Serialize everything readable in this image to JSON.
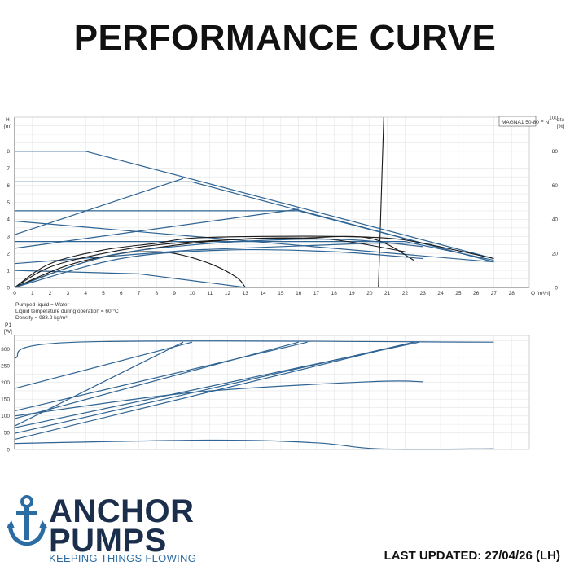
{
  "title": "PERFORMANCE CURVE",
  "brand": {
    "line1": "ANCHOR",
    "line2": "PUMPS",
    "tagline": "KEEPING THINGS FLOWING",
    "primary_color": "#1b2f4d",
    "accent_color": "#2b6ca3",
    "icon": "anchor-icon"
  },
  "last_updated": "LAST UPDATED: 27/04/26 (LH)",
  "colors": {
    "curve_blue": "#2f6493",
    "curve_black": "#1a1a1a",
    "grid": "#e4e4e4"
  },
  "chart_data": [
    {
      "type": "line",
      "title": "",
      "legend_label": "MAGNA1 50-80 F N",
      "ylabel": "H",
      "yunit": "[m]",
      "xlabel": "Q [m³/h]",
      "y2label": "eta",
      "y2unit": "[%]",
      "xlim": [
        0,
        29
      ],
      "ylim": [
        0,
        10
      ],
      "y2lim": [
        0,
        100
      ],
      "xticks": [
        "0",
        "1",
        "2",
        "3",
        "4",
        "5",
        "6",
        "7",
        "8",
        "9",
        "10",
        "11",
        "12",
        "13",
        "14",
        "15",
        "16",
        "17",
        "18",
        "19",
        "20",
        "21",
        "22",
        "23",
        "24",
        "25",
        "26",
        "27",
        "28"
      ],
      "yticks": [
        "0",
        "1",
        "2",
        "3",
        "4",
        "5",
        "6",
        "7",
        "8"
      ],
      "y2ticks": [
        "0",
        "20",
        "40",
        "60",
        "80",
        "100"
      ],
      "grid": true,
      "vertical_line_x": [
        20.5,
        20.8
      ],
      "notes": [
        "Pumped liquid = Water",
        "Liquid temperature during operation = 60 °C",
        "Density = 983.2 kg/m³"
      ],
      "series": [
        {
          "axis": "H",
          "color": "blue",
          "points": [
            [
              0,
              8
            ],
            [
              4,
              8
            ],
            [
              27,
              1.7
            ]
          ]
        },
        {
          "axis": "H",
          "color": "blue",
          "points": [
            [
              0,
              6.2
            ],
            [
              10,
              6.2
            ],
            [
              27,
              1.5
            ]
          ]
        },
        {
          "axis": "H",
          "color": "blue",
          "points": [
            [
              0,
              4.5
            ],
            [
              16,
              4.5
            ],
            [
              27,
              1.5
            ]
          ]
        },
        {
          "axis": "H",
          "color": "blue",
          "points": [
            [
              0,
              3.9
            ],
            [
              27,
              1.5
            ]
          ]
        },
        {
          "axis": "H",
          "color": "blue",
          "points": [
            [
              0,
              2.7
            ],
            [
              22,
              2.7
            ],
            [
              27,
              1.6
            ]
          ]
        },
        {
          "axis": "H",
          "color": "blue",
          "points": [
            [
              0,
              1.0
            ],
            [
              7,
              0.8
            ],
            [
              13,
              0
            ]
          ]
        },
        {
          "axis": "H",
          "color": "blue",
          "points": [
            [
              0,
              3.1
            ],
            [
              9.5,
              6.4
            ]
          ]
        },
        {
          "axis": "H",
          "color": "blue",
          "points": [
            [
              0,
              2.3
            ],
            [
              16,
              4.6
            ]
          ]
        },
        {
          "axis": "H",
          "color": "blue",
          "points": [
            [
              0,
              1.4
            ],
            [
              10,
              2.2
            ],
            [
              20,
              2.6
            ],
            [
              24,
              2.6
            ]
          ]
        },
        {
          "axis": "eta",
          "color": "black",
          "points": [
            [
              0,
              0
            ],
            [
              2,
              14
            ],
            [
              5,
              22
            ],
            [
              8,
              26
            ],
            [
              10,
              29
            ],
            [
              14,
              30
            ],
            [
              18,
              30
            ],
            [
              21,
              29
            ],
            [
              23,
              26
            ],
            [
              27,
              17
            ]
          ]
        },
        {
          "axis": "eta",
          "color": "black",
          "points": [
            [
              0,
              0
            ],
            [
              2,
              12
            ],
            [
              5,
              20
            ],
            [
              8,
              25
            ],
            [
              12,
              28
            ],
            [
              16,
              29
            ],
            [
              20,
              29
            ],
            [
              22.5,
              16
            ]
          ]
        },
        {
          "axis": "eta",
          "color": "black",
          "points": [
            [
              0,
              0
            ],
            [
              3,
              13
            ],
            [
              6,
              20
            ],
            [
              10,
              26
            ],
            [
              14,
              29
            ],
            [
              18,
              28
            ],
            [
              22,
              21
            ]
          ]
        },
        {
          "axis": "eta",
          "color": "black",
          "points": [
            [
              0,
              0
            ],
            [
              2,
              8
            ],
            [
              4,
              15
            ],
            [
              6,
              20
            ],
            [
              7.5,
              21
            ],
            [
              9,
              20
            ],
            [
              11,
              14
            ],
            [
              12.5,
              6
            ],
            [
              13,
              0
            ]
          ]
        },
        {
          "axis": "eta",
          "color": "blue",
          "points": [
            [
              0,
              0
            ],
            [
              5,
              18
            ],
            [
              10,
              25
            ],
            [
              15,
              28
            ],
            [
              19,
              28
            ],
            [
              23,
              24
            ]
          ]
        },
        {
          "axis": "eta",
          "color": "blue",
          "points": [
            [
              0,
              0
            ],
            [
              6,
              17
            ],
            [
              12,
              22
            ],
            [
              18,
              21
            ],
            [
              23,
              17
            ]
          ]
        }
      ]
    },
    {
      "type": "line",
      "title": "",
      "ylabel": "P1",
      "yunit": "[W]",
      "xlim": [
        0,
        29
      ],
      "ylim": [
        0,
        340
      ],
      "yticks": [
        "0",
        "50",
        "100",
        "150",
        "200",
        "250",
        "300"
      ],
      "grid": true,
      "series": [
        {
          "color": "blue",
          "points": [
            [
              0,
              272
            ],
            [
              3.5,
              320
            ],
            [
              27,
              320
            ]
          ]
        },
        {
          "color": "blue",
          "points": [
            [
              0,
              182
            ],
            [
              10,
              320
            ]
          ]
        },
        {
          "color": "blue",
          "points": [
            [
              0,
              70
            ],
            [
              9.5,
              320
            ]
          ]
        },
        {
          "color": "blue",
          "points": [
            [
              0,
              115
            ],
            [
              16.5,
              320
            ]
          ]
        },
        {
          "color": "blue",
          "points": [
            [
              0,
              92
            ],
            [
              16,
              320
            ]
          ]
        },
        {
          "color": "blue",
          "points": [
            [
              0,
              65
            ],
            [
              22.8,
              320
            ]
          ]
        },
        {
          "color": "blue",
          "points": [
            [
              0,
              48
            ],
            [
              22.5,
              320
            ]
          ]
        },
        {
          "color": "blue",
          "points": [
            [
              0,
              30
            ],
            [
              22.5,
              320
            ]
          ]
        },
        {
          "color": "blue",
          "points": [
            [
              0,
              18
            ],
            [
              11,
              28
            ],
            [
              17,
              20
            ],
            [
              20.5,
              2
            ],
            [
              27,
              2
            ]
          ]
        },
        {
          "color": "blue",
          "points": [
            [
              0,
              100
            ],
            [
              10,
              170
            ],
            [
              20,
              202
            ],
            [
              23,
              202
            ]
          ]
        }
      ]
    }
  ]
}
